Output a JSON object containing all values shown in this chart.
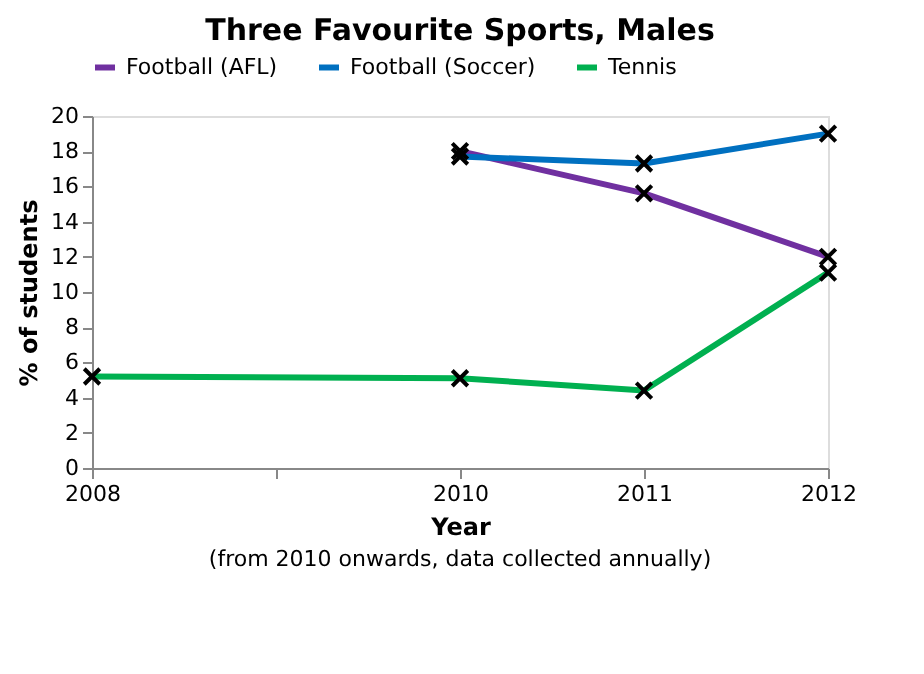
{
  "chart_data": {
    "type": "line",
    "title": "Three Favourite Sports, Males",
    "xlabel": "Year",
    "ylabel": "% of students",
    "annotations": [
      "(from 2010 onwards, data collected annually)"
    ],
    "xlim": [
      2008,
      2012
    ],
    "xticks": [
      2008,
      {
        "value": 2009,
        "label": null
      },
      2010,
      2011,
      2012
    ],
    "ylim": [
      0,
      20
    ],
    "yticks": [
      0,
      2,
      4,
      6,
      8,
      10,
      12,
      14,
      16,
      18,
      20
    ],
    "grid": false,
    "legend": "top",
    "marker": "cross",
    "line_style": "solid",
    "series": [
      {
        "name": "Football (AFL)",
        "color": "#7030a0",
        "x": [
          2010,
          2011,
          2012
        ],
        "values": [
          18.0,
          15.6,
          12.0
        ]
      },
      {
        "name": "Football (Soccer)",
        "color": "#0070c0",
        "x": [
          2010,
          2011,
          2012
        ],
        "values": [
          17.7,
          17.3,
          19.0
        ]
      },
      {
        "name": "Tennis",
        "color": "#00b050",
        "x": [
          2008,
          2010,
          2011,
          2012
        ],
        "values": [
          5.2,
          5.1,
          4.4,
          11.1
        ]
      }
    ]
  }
}
